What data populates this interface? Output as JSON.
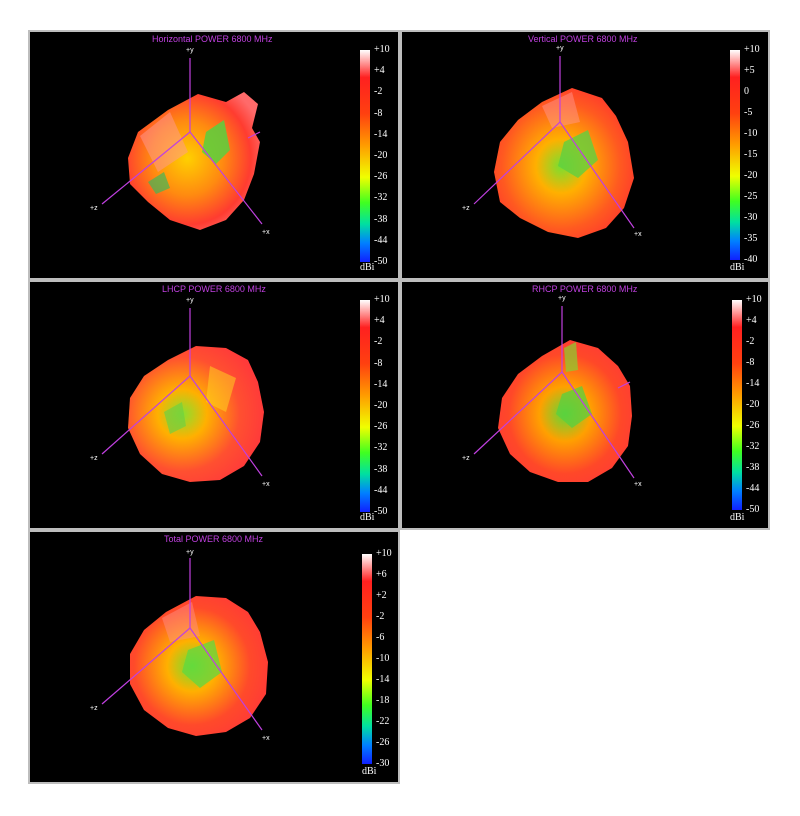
{
  "chart_data": [
    {
      "type": "heatmap",
      "title": "Horizontal POWER 6800  MHz",
      "colorbar": {
        "unit": "dBi",
        "ticks": [
          "+10",
          "+4",
          "-2",
          "-8",
          "-14",
          "-20",
          "-26",
          "-32",
          "-38",
          "-44",
          "-50"
        ],
        "range": [
          -50,
          10
        ]
      },
      "axes": [
        "+y",
        "+z",
        "+x"
      ]
    },
    {
      "type": "heatmap",
      "title": "Vertical POWER 6800  MHz",
      "colorbar": {
        "unit": "dBi",
        "ticks": [
          "+10",
          "+5",
          "0",
          "-5",
          "-10",
          "-15",
          "-20",
          "-25",
          "-30",
          "-35",
          "-40"
        ],
        "range": [
          -40,
          10
        ]
      },
      "axes": [
        "+y",
        "+z",
        "+x"
      ]
    },
    {
      "type": "heatmap",
      "title": "LHCP POWER 6800  MHz",
      "colorbar": {
        "unit": "dBi",
        "ticks": [
          "+10",
          "+4",
          "-2",
          "-8",
          "-14",
          "-20",
          "-26",
          "-32",
          "-38",
          "-44",
          "-50"
        ],
        "range": [
          -50,
          10
        ]
      },
      "axes": [
        "+y",
        "+z",
        "+x"
      ]
    },
    {
      "type": "heatmap",
      "title": "RHCP POWER 6800  MHz",
      "colorbar": {
        "unit": "dBi",
        "ticks": [
          "+10",
          "+4",
          "-2",
          "-8",
          "-14",
          "-20",
          "-26",
          "-32",
          "-38",
          "-44",
          "-50"
        ],
        "range": [
          -50,
          10
        ]
      },
      "axes": [
        "+y",
        "+z",
        "+x"
      ]
    },
    {
      "type": "heatmap",
      "title": "Total POWER 6800  MHz",
      "colorbar": {
        "unit": "dBi",
        "ticks": [
          "+10",
          "+6",
          "+2",
          "-2",
          "-6",
          "-10",
          "-14",
          "-18",
          "-22",
          "-26",
          "-30"
        ],
        "range": [
          -30,
          10
        ]
      },
      "axes": [
        "+y",
        "+z",
        "+x"
      ]
    }
  ]
}
